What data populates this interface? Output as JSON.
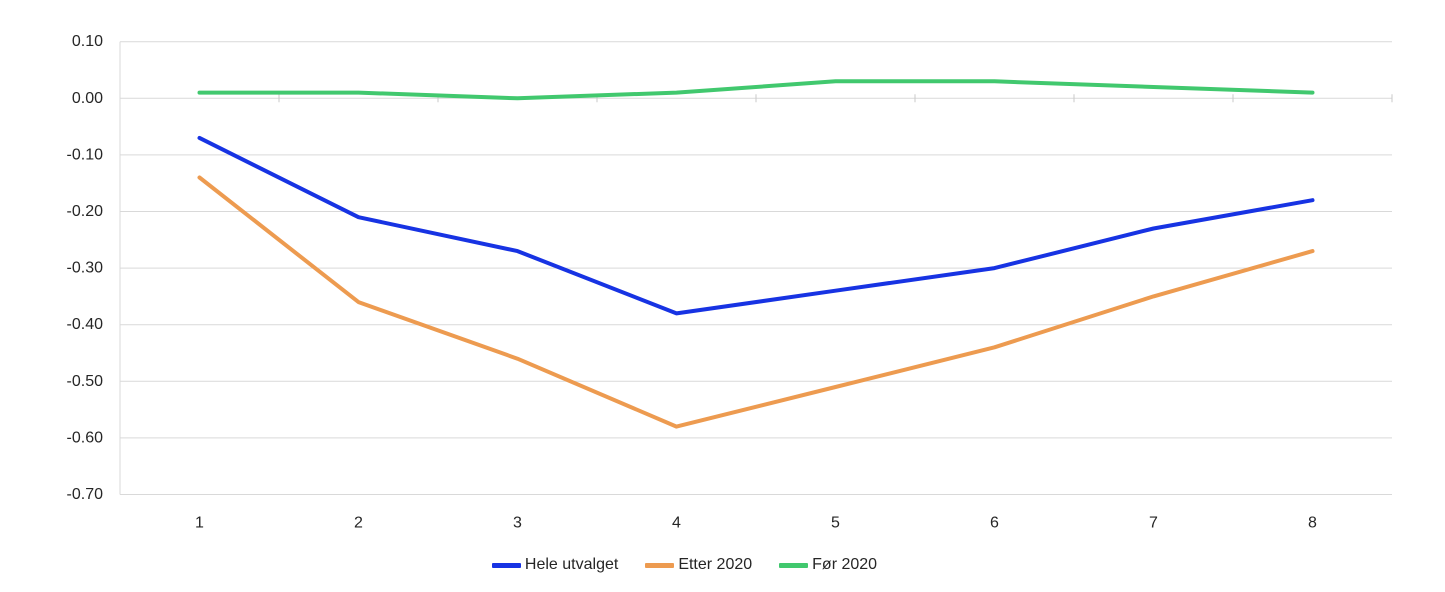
{
  "chart_data": {
    "type": "line",
    "title": "",
    "xlabel": "",
    "ylabel": "",
    "categories": [
      "1",
      "2",
      "3",
      "4",
      "5",
      "6",
      "7",
      "8"
    ],
    "series": [
      {
        "name": "Hele utvalget",
        "color": "#1733E3",
        "values": [
          -0.07,
          -0.21,
          -0.27,
          -0.38,
          -0.34,
          -0.3,
          -0.23,
          -0.18
        ]
      },
      {
        "name": "Etter 2020",
        "color": "#ED9B50",
        "values": [
          -0.14,
          -0.36,
          -0.46,
          -0.58,
          -0.51,
          -0.44,
          -0.35,
          -0.27
        ]
      },
      {
        "name": "Før 2020",
        "color": "#41C86E",
        "values": [
          0.01,
          0.01,
          0.0,
          0.01,
          0.03,
          0.03,
          0.02,
          0.01
        ]
      }
    ],
    "y_tick_labels": [
      "0.10",
      "0.00",
      "-0.10",
      "-0.20",
      "-0.30",
      "-0.40",
      "-0.50",
      "-0.60",
      "-0.70"
    ],
    "ylim": [
      -0.7,
      0.1
    ],
    "y_step": 0.1,
    "grid": "horizontal",
    "legend_position": "bottom",
    "colors": {
      "gridline": "#D9D9D9",
      "axis_line": "#D9D9D9",
      "tick_mark": "#C9C9C9",
      "axis_text": "#262626",
      "background": "#FFFFFF"
    }
  }
}
